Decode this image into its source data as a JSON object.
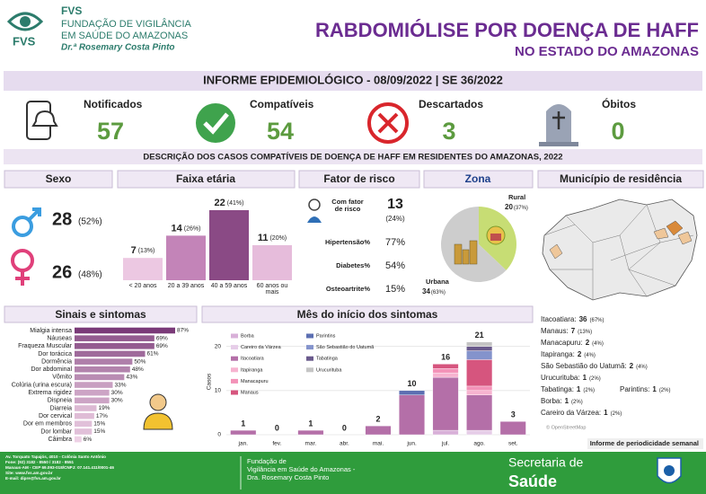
{
  "header": {
    "logo_abbr": "FVS",
    "logo_line1": "FUNDAÇÃO DE VIGILÂNCIA",
    "logo_line2": "EM SAÚDE DO AMAZONAS",
    "logo_line3": "Dr.ª Rosemary Costa Pinto",
    "title": "RABDOMIÓLISE POR DOENÇA DE HAFF",
    "subtitle": "NO ESTADO DO AMAZONAS",
    "banner": "INFORME EPIDEMIOLÓGICO - 08/09/2022 | SE 36/2022"
  },
  "kpis": [
    {
      "label": "Notificados",
      "value": 57
    },
    {
      "label": "Compatíveis",
      "value": 54
    },
    {
      "label": "Descartados",
      "value": 3
    },
    {
      "label": "Óbitos",
      "value": 0
    }
  ],
  "section_title": "DESCRIÇÃO DOS CASOS COMPATÍVEIS DE DOENÇA DE HAFF EM RESIDENTES DO AMAZONAS, 2022",
  "sex": {
    "title": "Sexo",
    "male": {
      "value": 28,
      "share": "(52%)"
    },
    "female": {
      "value": 26,
      "share": "(48%)"
    }
  },
  "risk": {
    "title": "Fator de risco",
    "with_factor_label": "Com fator de risco",
    "with_factor_value": 13,
    "with_factor_share": "(24%)",
    "items": [
      {
        "label": "Hipertensão%",
        "value": "77%"
      },
      {
        "label": "Diabetes%",
        "value": "54%"
      },
      {
        "label": "Osteoartrite%",
        "value": "15%"
      }
    ]
  },
  "municipalities": {
    "title": "Município de residência",
    "map_credit": "© OpenStreetMap",
    "items": [
      {
        "name": "Itacoatiara:",
        "value": 36,
        "share": "(67%)"
      },
      {
        "name": "Manaus:",
        "value": 7,
        "share": "(13%)"
      },
      {
        "name": "Manacapuru:",
        "value": 2,
        "share": "(4%)"
      },
      {
        "name": "Itapiranga:",
        "value": 2,
        "share": "(4%)"
      },
      {
        "name": "São Sebastião do Uatumã:",
        "value": 2,
        "share": "(4%)"
      },
      {
        "name": "Urucurituba:",
        "value": 1,
        "share": "(2%)"
      },
      {
        "name": "Tabatinga:",
        "value": 1,
        "share": "(2%)"
      },
      {
        "name": "Parintins:",
        "value": 1,
        "share": "(2%)"
      },
      {
        "name": "Borba:",
        "value": 1,
        "share": "(2%)"
      },
      {
        "name": "Careiro da Várzea:",
        "value": 1,
        "share": "(2%)"
      }
    ]
  },
  "periodicity": "Informe de periodicidade semanal",
  "footer": {
    "address": [
      "Av. Torquato Tapajós, 4010 - Colônia Santo Antônio",
      "Fone: (92) 3182 - 8550 / 3182 - 8551",
      "Manaus-AM - CEP 69.093-018/CNPJ: 07.141.411/0001-46",
      "Site: www.fvs.am.gov.br",
      "E-mail: dipre@fvs.am.gov.br"
    ],
    "org": [
      "Fundação de",
      "Vigilância em Saúde do Amazonas -",
      "Dra. Rosemary Costa Pinto"
    ],
    "secretaria": "Secretaria de",
    "saude": "Saúde"
  },
  "chart_data": [
    {
      "type": "bar",
      "title": "Faixa etária",
      "categories": [
        "< 20 anos",
        "20 a 39 anos",
        "40 a 59 anos",
        "60 anos ou mais"
      ],
      "values": [
        7,
        14,
        22,
        11
      ],
      "share_labels": [
        "(13%)",
        "(26%)",
        "(41%)",
        "(20%)"
      ],
      "colors": [
        "#ecc8e2",
        "#c384b8",
        "#8a4a85",
        "#e6bcdb"
      ]
    },
    {
      "type": "pie",
      "title": "Zona",
      "categories": [
        "Rural",
        "Urbana"
      ],
      "values": [
        20,
        34
      ],
      "share_labels": [
        "(37%)",
        "(63%)"
      ],
      "colors": [
        "#c7dd74",
        "#cdcdcd"
      ]
    },
    {
      "type": "hbar",
      "title": "Sinais e sintomas",
      "categories": [
        "Mialgia intensa",
        "Náuseas",
        "Fraqueza Muscular",
        "Dor torácica",
        "Dormência",
        "Dor abdominal",
        "Vômito",
        "Colúria (urina escura)",
        "Extrema rigidez",
        "Dispneia",
        "Diarreia",
        "Dor cervical",
        "Dor em membros",
        "Dor lombar",
        "Câimbra"
      ],
      "values": [
        87,
        69,
        69,
        61,
        50,
        48,
        43,
        33,
        30,
        30,
        19,
        17,
        15,
        15,
        6
      ],
      "value_labels": [
        "87%",
        "69%",
        "69%",
        "61%",
        "50%",
        "48%",
        "43%",
        "33%",
        "30%",
        "30%",
        "19%",
        "17%",
        "15%",
        "15%",
        "6%"
      ],
      "color_range": [
        "#f7dced",
        "#7a3a78"
      ]
    },
    {
      "type": "stacked_bar",
      "title": "Mês do início dos sintomas",
      "y_label": "Casos",
      "categories": [
        "jan.",
        "fev.",
        "mar.",
        "abr.",
        "mai.",
        "jun.",
        "jul.",
        "ago.",
        "set."
      ],
      "ylim": [
        0,
        24
      ],
      "yticks": [
        0,
        10,
        20
      ],
      "grid": true,
      "totals": [
        1,
        0,
        1,
        0,
        2,
        10,
        16,
        21,
        3
      ],
      "series": [
        {
          "name": "Borba",
          "color": "#d8b0d8",
          "values": [
            0,
            0,
            0,
            0,
            0,
            0,
            1,
            0,
            0
          ]
        },
        {
          "name": "Careiro da Várzea",
          "color": "#e6cde8",
          "values": [
            0,
            0,
            0,
            0,
            0,
            0,
            0,
            1,
            0
          ]
        },
        {
          "name": "Itacoatiara",
          "color": "#b46fa8",
          "values": [
            1,
            0,
            1,
            0,
            2,
            9,
            12,
            8,
            3
          ]
        },
        {
          "name": "Itapiranga",
          "color": "#f7b3d0",
          "values": [
            0,
            0,
            0,
            0,
            0,
            0,
            1,
            1,
            0
          ]
        },
        {
          "name": "Manacapuru",
          "color": "#f392b8",
          "values": [
            0,
            0,
            0,
            0,
            0,
            0,
            1,
            1,
            0
          ]
        },
        {
          "name": "Manaus",
          "color": "#d6557e",
          "values": [
            0,
            0,
            0,
            0,
            0,
            0,
            1,
            6,
            0
          ]
        },
        {
          "name": "Parintins",
          "color": "#5c6fb2",
          "values": [
            0,
            0,
            0,
            0,
            0,
            1,
            0,
            0,
            0
          ]
        },
        {
          "name": "São Sebastião do Uatumã",
          "color": "#8493cc",
          "values": [
            0,
            0,
            0,
            0,
            0,
            0,
            0,
            2,
            0
          ]
        },
        {
          "name": "Tabatinga",
          "color": "#6a5a8c",
          "values": [
            0,
            0,
            0,
            0,
            0,
            0,
            0,
            1,
            0
          ]
        },
        {
          "name": "Urucurituba",
          "color": "#c4c4c4",
          "values": [
            0,
            0,
            0,
            0,
            0,
            0,
            0,
            1,
            0
          ]
        }
      ]
    }
  ]
}
